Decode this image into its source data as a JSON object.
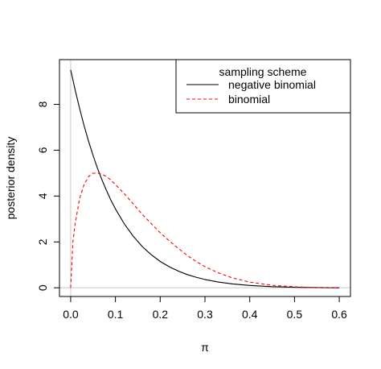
{
  "chart_data": {
    "type": "line",
    "title": "",
    "xlabel": "π",
    "ylabel": "posterior density",
    "xlim": [
      -0.025,
      0.625
    ],
    "ylim": [
      -0.38,
      9.95
    ],
    "xticks": [
      "0.0",
      "0.1",
      "0.2",
      "0.3",
      "0.4",
      "0.5",
      "0.6"
    ],
    "xtick_values": [
      0.0,
      0.1,
      0.2,
      0.3,
      0.4,
      0.5,
      0.6
    ],
    "yticks": [
      "0",
      "2",
      "4",
      "6",
      "8"
    ],
    "ytick_values": [
      0,
      2,
      4,
      6,
      8
    ],
    "reference_lines": {
      "horizontal_at": 0,
      "vertical_at": 0,
      "color": "#c8c8c8"
    },
    "legend": {
      "title": "sampling scheme",
      "placement": "top-right",
      "entries": [
        "negative binomial",
        "binomial"
      ]
    },
    "x": [
      0.0,
      0.005,
      0.01,
      0.02,
      0.03,
      0.04,
      0.05,
      0.06,
      0.07,
      0.08,
      0.09,
      0.1,
      0.12,
      0.14,
      0.16,
      0.18,
      0.2,
      0.22,
      0.24,
      0.26,
      0.28,
      0.3,
      0.33,
      0.36,
      0.4,
      0.45,
      0.5,
      0.55,
      0.6
    ],
    "series": [
      {
        "name": "negative binomial",
        "color": "#000000",
        "dash": "solid",
        "values": [
          9.5,
          9.07,
          8.63,
          7.81,
          7.07,
          6.39,
          5.77,
          5.21,
          4.7,
          4.24,
          3.82,
          3.44,
          2.78,
          2.24,
          1.8,
          1.44,
          1.15,
          0.92,
          0.73,
          0.58,
          0.46,
          0.36,
          0.25,
          0.17,
          0.1,
          0.05,
          0.02,
          0.01,
          0.0
        ]
      },
      {
        "name": "binomial",
        "color": "#ff0000",
        "dash": "dashed",
        "values": [
          0.0,
          2.0,
          2.8,
          3.9,
          4.5,
          4.85,
          5.0,
          5.0,
          4.95,
          4.85,
          4.7,
          4.5,
          4.1,
          3.65,
          3.2,
          2.8,
          2.4,
          2.05,
          1.72,
          1.42,
          1.15,
          0.92,
          0.65,
          0.44,
          0.25,
          0.11,
          0.04,
          0.01,
          0.0
        ]
      }
    ]
  }
}
